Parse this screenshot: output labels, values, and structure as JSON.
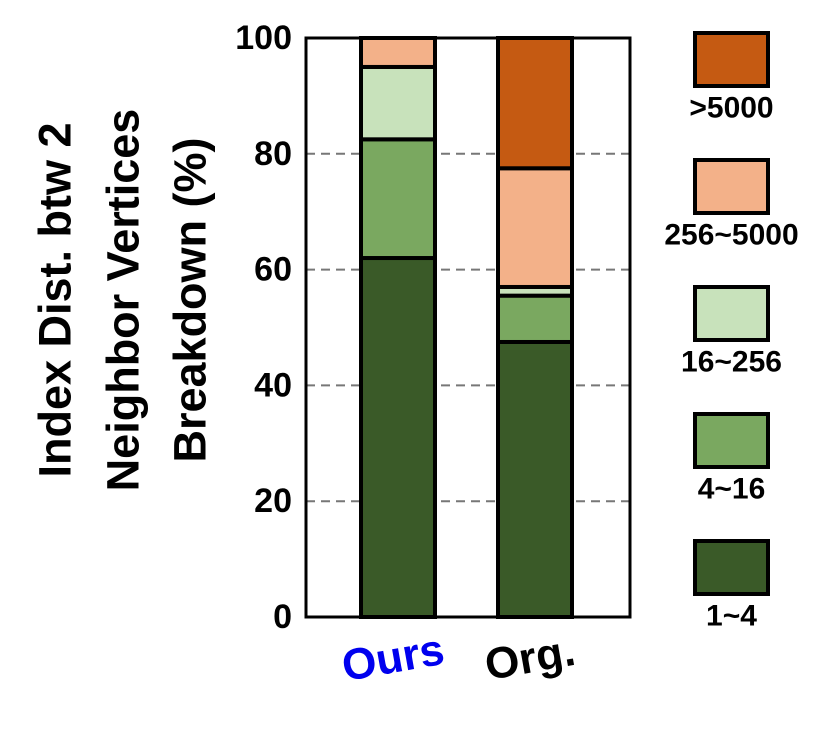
{
  "chart_data": {
    "type": "bar",
    "stacked": true,
    "ylabel": [
      "Index Dist. btw 2",
      "Neighbor Vertices",
      "Breakdown (%)"
    ],
    "ylim": [
      0,
      100
    ],
    "yticks": [
      0,
      20,
      40,
      60,
      80,
      100
    ],
    "grid": "horizontal dashed",
    "categories": [
      "Ours",
      "Org."
    ],
    "category_colors": [
      "#0000ee",
      "#000000"
    ],
    "legend_position": "right",
    "series": [
      {
        "name": "1~4",
        "color": "#3a5a28",
        "values": [
          62,
          47.5
        ]
      },
      {
        "name": "4~16",
        "color": "#7aa860",
        "values": [
          20.5,
          8
        ]
      },
      {
        "name": "16~256",
        "color": "#c8e2bb",
        "values": [
          12.5,
          1.5
        ]
      },
      {
        "name": "256~5000",
        "color": "#f3b189",
        "values": [
          5,
          20.5
        ]
      },
      {
        "name": ">5000",
        "color": "#c55a12",
        "values": [
          0,
          22.5
        ]
      }
    ]
  }
}
